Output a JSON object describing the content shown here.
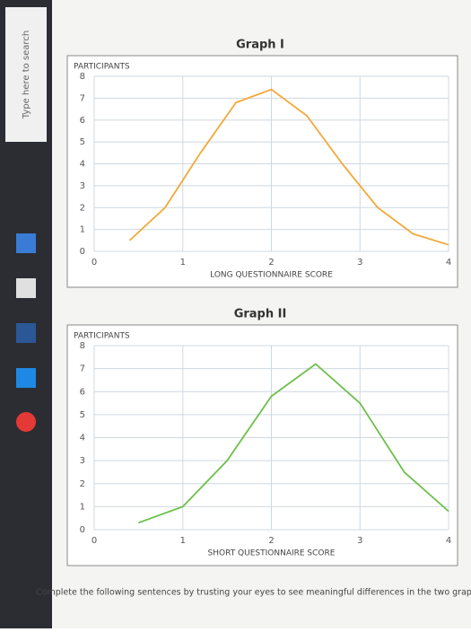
{
  "graphs": [
    {
      "title": "Graph I",
      "y_label": "PARTICIPANTS",
      "x_label": "LONG QUESTIONNAIRE SCORE",
      "xlim": [
        0,
        4
      ],
      "ylim": [
        0,
        8
      ],
      "xticks": [
        0,
        1,
        2,
        3,
        4
      ],
      "yticks": [
        0,
        1,
        2,
        3,
        4,
        5,
        6,
        7,
        8
      ],
      "grid": true,
      "curve": {
        "color": "#f2a93b",
        "x": [
          0.4,
          0.8,
          1.2,
          1.6,
          2,
          2.4,
          2.8,
          3.2,
          3.6,
          4
        ],
        "y": [
          0.5,
          2,
          4.5,
          6.8,
          7.4,
          6.2,
          4,
          2,
          0.8,
          0.3
        ]
      }
    },
    {
      "title": "Graph II",
      "y_label": "PARTICIPANTS",
      "x_label": "SHORT QUESTIONNAIRE SCORE",
      "xlim": [
        0,
        4
      ],
      "ylim": [
        0,
        8
      ],
      "xticks": [
        0,
        1,
        2,
        3,
        4
      ],
      "yticks": [
        0,
        1,
        2,
        3,
        4,
        5,
        6,
        7,
        8
      ],
      "grid": true,
      "curve": {
        "color": "#6cbf4a",
        "x": [
          0.5,
          1,
          1.5,
          2,
          2.5,
          3,
          3.5,
          4
        ],
        "y": [
          0.3,
          1,
          3,
          5.8,
          7.2,
          5.5,
          2.5,
          0.8
        ]
      }
    }
  ],
  "instruction": "Complete the following sentences by trusting your eyes to see meaningful differences in the two graphs.",
  "taskbar": {
    "search": "Type here to search"
  }
}
